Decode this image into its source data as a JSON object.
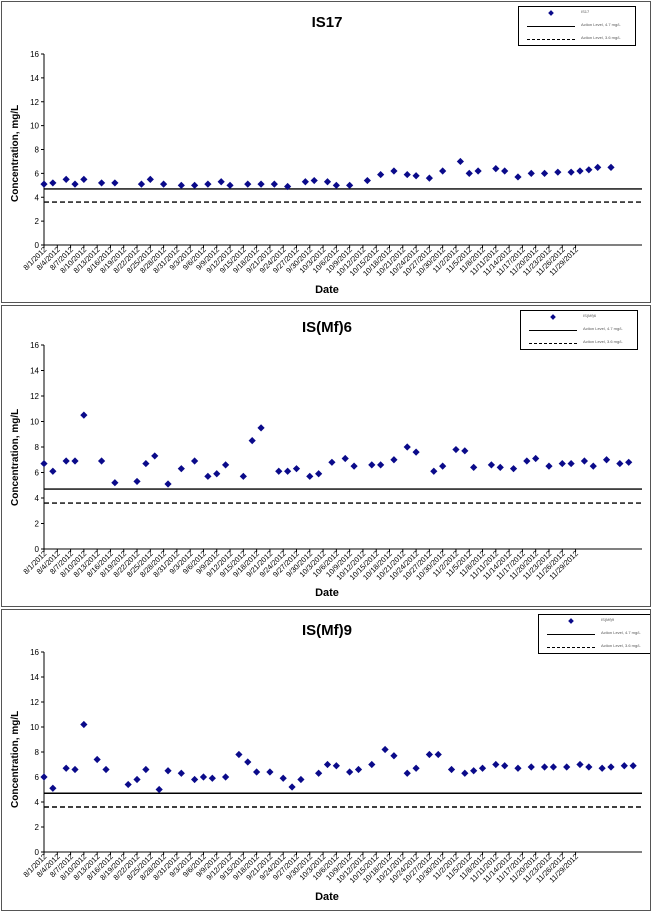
{
  "charts": [
    {
      "title": "IS17",
      "xlabel": "Date",
      "ylabel": "Concentration, mg/L",
      "legend": {
        "series": "IS17",
        "solid": "Action Level, 4.7 mg/L",
        "dashed": "Action Level, 3.6 mg/L"
      },
      "chart_data": {
        "type": "scatter",
        "title": "IS17",
        "xlabel": "Date",
        "ylabel": "Concentration, mg/L",
        "ylim": [
          0,
          16
        ],
        "yticks": [
          "0",
          "2",
          "4",
          "6",
          "8",
          "10",
          "12",
          "14",
          "16"
        ],
        "grid": false,
        "legend_position": "top-right",
        "x_tick_labels": [
          "8/1/2012",
          "8/4/2012",
          "8/7/2012",
          "8/10/2012",
          "8/13/2012",
          "8/16/2012",
          "8/19/2012",
          "8/22/2012",
          "8/25/2012",
          "8/28/2012",
          "8/31/2012",
          "9/3/2012",
          "9/6/2012",
          "9/9/2012",
          "9/12/2012",
          "9/15/2012",
          "9/18/2012",
          "9/21/2012",
          "9/24/2012",
          "9/27/2012",
          "9/30/2012",
          "10/3/2012",
          "10/6/2012",
          "10/9/2012",
          "10/12/2012",
          "10/15/2012",
          "10/18/2012",
          "10/21/2012",
          "10/24/2012",
          "10/27/2012",
          "10/30/2012",
          "11/2/2012",
          "11/5/2012",
          "11/8/2012",
          "11/11/2012",
          "11/14/2012",
          "11/17/2012",
          "11/20/2012",
          "11/23/2012",
          "11/26/2012",
          "11/29/2012"
        ],
        "series": [
          {
            "name": "IS17",
            "color": "#0a0a8a",
            "marker": "diamond",
            "x": [
              "8/1/2012",
              "8/3/2012",
              "8/6/2012",
              "8/8/2012",
              "8/10/2012",
              "8/14/2012",
              "8/17/2012",
              "8/23/2012",
              "8/25/2012",
              "8/28/2012",
              "9/1/2012",
              "9/4/2012",
              "9/7/2012",
              "9/10/2012",
              "9/12/2012",
              "9/16/2012",
              "9/19/2012",
              "9/22/2012",
              "9/25/2012",
              "9/29/2012",
              "10/1/2012",
              "10/4/2012",
              "10/6/2012",
              "10/9/2012",
              "10/13/2012",
              "10/16/2012",
              "10/19/2012",
              "10/22/2012",
              "10/24/2012",
              "10/27/2012",
              "10/30/2012",
              "11/3/2012",
              "11/5/2012",
              "11/7/2012",
              "11/11/2012",
              "11/13/2012",
              "11/16/2012",
              "11/19/2012",
              "11/22/2012",
              "11/25/2012",
              "11/28/2012",
              "11/30/2012",
              "12/2/2012",
              "12/4/2012",
              "12/7/2012"
            ],
            "y": [
              5.1,
              5.2,
              5.5,
              5.1,
              5.5,
              5.2,
              5.2,
              5.1,
              5.5,
              5.1,
              5.0,
              5.0,
              5.1,
              5.3,
              5.0,
              5.1,
              5.1,
              5.1,
              4.9,
              5.3,
              5.4,
              5.3,
              5.0,
              5.0,
              5.4,
              5.9,
              6.2,
              5.9,
              5.8,
              5.6,
              6.2,
              7.0,
              6.0,
              6.2,
              6.4,
              6.2,
              5.7,
              6.0,
              6.0,
              6.1,
              6.1,
              6.2,
              6.3,
              6.5,
              6.5
            ]
          }
        ],
        "reference_lines": [
          {
            "label": "Action Level, 4.7 mg/L",
            "value": 4.7,
            "style": "solid"
          },
          {
            "label": "Action Level, 3.6 mg/L",
            "value": 3.6,
            "style": "dashed"
          }
        ]
      }
    },
    {
      "title": "IS(Mf)6",
      "xlabel": "Date",
      "ylabel": "Concentration, mg/L",
      "legend": {
        "series": "IS(Mf)6",
        "solid": "Action Level, 4.7 mg/L",
        "dashed": "Action Level, 3.6 mg/L"
      },
      "chart_data": {
        "type": "scatter",
        "title": "IS(Mf)6",
        "xlabel": "Date",
        "ylabel": "Concentration, mg/L",
        "ylim": [
          0,
          16
        ],
        "yticks": [
          "0",
          "2",
          "4",
          "6",
          "8",
          "10",
          "12",
          "14",
          "16"
        ],
        "grid": false,
        "legend_position": "top-right",
        "x_tick_labels": [
          "8/1/2012",
          "8/4/2012",
          "8/7/2012",
          "8/10/2012",
          "8/13/2012",
          "8/16/2012",
          "8/19/2012",
          "8/22/2012",
          "8/25/2012",
          "8/28/2012",
          "8/31/2012",
          "9/3/2012",
          "9/6/2012",
          "9/9/2012",
          "9/12/2012",
          "9/15/2012",
          "9/18/2012",
          "9/21/2012",
          "9/24/2012",
          "9/27/2012",
          "9/30/2012",
          "10/3/2012",
          "10/6/2012",
          "10/9/2012",
          "10/12/2012",
          "10/15/2012",
          "10/18/2012",
          "10/21/2012",
          "10/24/2012",
          "10/27/2012",
          "10/30/2012",
          "11/2/2012",
          "11/5/2012",
          "11/8/2012",
          "11/11/2012",
          "11/14/2012",
          "11/17/2012",
          "11/20/2012",
          "11/23/2012",
          "11/26/2012",
          "11/29/2012"
        ],
        "series": [
          {
            "name": "IS(Mf)6",
            "color": "#0a0a8a",
            "marker": "diamond",
            "x": [
              "8/1/2012",
              "8/3/2012",
              "8/6/2012",
              "8/8/2012",
              "8/10/2012",
              "8/14/2012",
              "8/17/2012",
              "8/22/2012",
              "8/24/2012",
              "8/26/2012",
              "8/29/2012",
              "9/1/2012",
              "9/4/2012",
              "9/7/2012",
              "9/9/2012",
              "9/11/2012",
              "9/15/2012",
              "9/17/2012",
              "9/19/2012",
              "9/23/2012",
              "9/25/2012",
              "9/27/2012",
              "9/30/2012",
              "10/2/2012",
              "10/5/2012",
              "10/8/2012",
              "10/10/2012",
              "10/14/2012",
              "10/16/2012",
              "10/19/2012",
              "10/22/2012",
              "10/24/2012",
              "10/28/2012",
              "10/30/2012",
              "11/2/2012",
              "11/4/2012",
              "11/6/2012",
              "11/10/2012",
              "11/12/2012",
              "11/15/2012",
              "11/18/2012",
              "11/20/2012",
              "11/23/2012",
              "11/26/2012",
              "11/28/2012",
              "12/1/2012",
              "12/3/2012",
              "12/6/2012",
              "12/9/2012",
              "12/11/2012"
            ],
            "y": [
              6.7,
              6.1,
              6.9,
              6.9,
              10.5,
              6.9,
              5.2,
              5.3,
              6.7,
              7.3,
              5.1,
              6.3,
              6.9,
              5.7,
              5.9,
              6.6,
              5.7,
              8.5,
              9.5,
              6.1,
              6.1,
              6.3,
              5.7,
              5.9,
              6.8,
              7.1,
              6.5,
              6.6,
              6.6,
              7.0,
              8.0,
              7.6,
              6.1,
              6.5,
              7.8,
              7.7,
              6.4,
              6.6,
              6.4,
              6.3,
              6.9,
              7.1,
              6.5,
              6.7,
              6.7,
              6.9,
              6.5,
              7.0,
              6.7,
              6.8
            ]
          }
        ],
        "reference_lines": [
          {
            "label": "Action Level, 4.7 mg/L",
            "value": 4.7,
            "style": "solid"
          },
          {
            "label": "Action Level, 3.6 mg/L",
            "value": 3.6,
            "style": "dashed"
          }
        ]
      }
    },
    {
      "title": "IS(Mf)9",
      "xlabel": "Date",
      "ylabel": "Concentration, mg/L",
      "legend": {
        "series": "IS(Mf)9",
        "solid": "Action Level, 4.7 mg/L",
        "dashed": "Action Level, 3.6 mg/L"
      },
      "chart_data": {
        "type": "scatter",
        "title": "IS(Mf)9",
        "xlabel": "Date",
        "ylabel": "Concentration, mg/L",
        "ylim": [
          0,
          16
        ],
        "yticks": [
          "0",
          "2",
          "4",
          "6",
          "8",
          "10",
          "12",
          "14",
          "16"
        ],
        "grid": false,
        "legend_position": "top-right",
        "x_tick_labels": [
          "8/1/2012",
          "8/4/2012",
          "8/7/2012",
          "8/10/2012",
          "8/13/2012",
          "8/16/2012",
          "8/19/2012",
          "8/22/2012",
          "8/25/2012",
          "8/28/2012",
          "8/31/2012",
          "9/3/2012",
          "9/6/2012",
          "9/9/2012",
          "9/12/2012",
          "9/15/2012",
          "9/18/2012",
          "9/21/2012",
          "9/24/2012",
          "9/27/2012",
          "9/30/2012",
          "10/3/2012",
          "10/6/2012",
          "10/9/2012",
          "10/12/2012",
          "10/15/2012",
          "10/18/2012",
          "10/21/2012",
          "10/24/2012",
          "10/27/2012",
          "10/30/2012",
          "11/2/2012",
          "11/5/2012",
          "11/8/2012",
          "11/11/2012",
          "11/14/2012",
          "11/17/2012",
          "11/20/2012",
          "11/23/2012",
          "11/26/2012",
          "11/29/2012"
        ],
        "series": [
          {
            "name": "IS(Mf)9",
            "color": "#0a0a8a",
            "marker": "diamond",
            "x": [
              "8/1/2012",
              "8/3/2012",
              "8/6/2012",
              "8/8/2012",
              "8/10/2012",
              "8/13/2012",
              "8/15/2012",
              "8/20/2012",
              "8/22/2012",
              "8/24/2012",
              "8/27/2012",
              "8/29/2012",
              "9/1/2012",
              "9/4/2012",
              "9/6/2012",
              "9/8/2012",
              "9/11/2012",
              "9/14/2012",
              "9/16/2012",
              "9/18/2012",
              "9/21/2012",
              "9/24/2012",
              "9/26/2012",
              "9/28/2012",
              "10/2/2012",
              "10/4/2012",
              "10/6/2012",
              "10/9/2012",
              "10/11/2012",
              "10/14/2012",
              "10/17/2012",
              "10/19/2012",
              "10/22/2012",
              "10/24/2012",
              "10/27/2012",
              "10/29/2012",
              "11/1/2012",
              "11/4/2012",
              "11/6/2012",
              "11/8/2012",
              "11/11/2012",
              "11/13/2012",
              "11/16/2012",
              "11/19/2012",
              "11/22/2012",
              "11/24/2012",
              "11/27/2012",
              "11/30/2012",
              "12/2/2012",
              "12/5/2012",
              "12/7/2012",
              "12/10/2012",
              "12/12/2012"
            ],
            "y": [
              6.0,
              5.1,
              6.7,
              6.6,
              10.2,
              7.4,
              6.6,
              5.4,
              5.8,
              6.6,
              5.0,
              6.5,
              6.3,
              5.8,
              6.0,
              5.9,
              6.0,
              7.8,
              7.2,
              6.4,
              6.4,
              5.9,
              5.2,
              5.8,
              6.3,
              7.0,
              6.9,
              6.4,
              6.6,
              7.0,
              8.2,
              7.7,
              6.3,
              6.7,
              7.8,
              7.8,
              6.6,
              6.3,
              6.5,
              6.7,
              7.0,
              6.9,
              6.7,
              6.8,
              6.8,
              6.8,
              6.8,
              7.0,
              6.8,
              6.7,
              6.8,
              6.9,
              6.9
            ]
          }
        ],
        "reference_lines": [
          {
            "label": "Action Level, 4.7 mg/L",
            "value": 4.7,
            "style": "solid"
          },
          {
            "label": "Action Level, 3.6 mg/L",
            "value": 3.6,
            "style": "dashed"
          }
        ]
      }
    }
  ]
}
